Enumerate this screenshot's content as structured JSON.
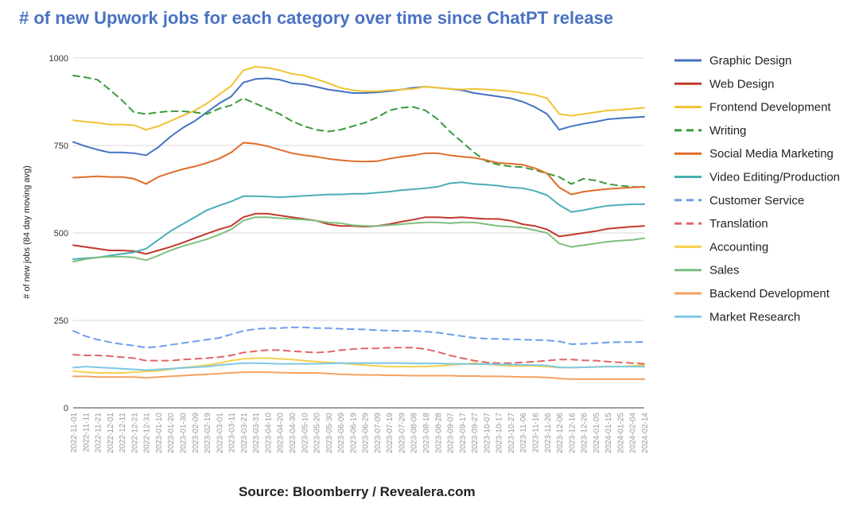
{
  "chart_data": {
    "type": "line",
    "title": "# of new Upwork jobs for each category over time since ChatPT release",
    "source": "Source: Bloomberry / Revealera.com",
    "ylabel": "# of new jobs (84 day moving avg)",
    "xlabel": "",
    "ylim": [
      0,
      1000
    ],
    "yticks": [
      0,
      250,
      500,
      750,
      1000
    ],
    "grid": true,
    "legend_position": "right",
    "x": [
      "2022-11-01",
      "2022-11-11",
      "2022-11-21",
      "2022-12-01",
      "2022-12-11",
      "2022-12-21",
      "2022-12-31",
      "2023-01-10",
      "2023-01-20",
      "2023-01-30",
      "2023-02-09",
      "2023-02-19",
      "2023-03-01",
      "2023-03-11",
      "2023-03-21",
      "2023-03-31",
      "2023-04-10",
      "2023-04-20",
      "2023-04-30",
      "2023-05-10",
      "2023-05-20",
      "2023-05-30",
      "2023-06-09",
      "2023-06-19",
      "2023-06-29",
      "2023-07-09",
      "2023-07-19",
      "2023-07-29",
      "2023-08-08",
      "2023-08-18",
      "2023-08-28",
      "2023-09-07",
      "2023-09-17",
      "2023-09-27",
      "2023-10-07",
      "2023-10-17",
      "2023-10-27",
      "2023-11-06",
      "2023-11-16",
      "2023-11-26",
      "2023-12-06",
      "2023-12-16",
      "2023-12-26",
      "2024-01-05",
      "2024-01-15",
      "2024-01-25",
      "2024-02-04",
      "2024-02-14"
    ],
    "series": [
      {
        "name": "Graphic Design",
        "color": "#4472c4",
        "dash": "solid",
        "values": [
          760,
          748,
          738,
          730,
          730,
          728,
          722,
          745,
          775,
          800,
          820,
          845,
          870,
          890,
          930,
          940,
          942,
          938,
          928,
          925,
          918,
          910,
          905,
          900,
          900,
          902,
          905,
          910,
          915,
          918,
          915,
          912,
          908,
          900,
          895,
          890,
          885,
          875,
          860,
          840,
          795,
          805,
          812,
          818,
          825,
          828,
          830,
          832
        ]
      },
      {
        "name": "Web Design",
        "color": "#c0392b",
        "dash": "solid",
        "values": [
          465,
          460,
          455,
          450,
          450,
          448,
          440,
          450,
          460,
          472,
          485,
          498,
          510,
          520,
          545,
          555,
          555,
          550,
          545,
          540,
          535,
          525,
          520,
          520,
          518,
          520,
          525,
          532,
          538,
          545,
          545,
          543,
          545,
          542,
          540,
          540,
          535,
          525,
          520,
          510,
          490,
          495,
          500,
          505,
          512,
          515,
          518,
          520
        ]
      },
      {
        "name": "Frontend Development",
        "color": "#f1c232",
        "dash": "solid",
        "values": [
          822,
          818,
          815,
          810,
          810,
          808,
          795,
          805,
          820,
          835,
          850,
          870,
          895,
          920,
          965,
          975,
          972,
          965,
          955,
          950,
          940,
          928,
          915,
          908,
          905,
          905,
          908,
          910,
          912,
          918,
          915,
          912,
          910,
          912,
          910,
          908,
          905,
          900,
          895,
          885,
          840,
          835,
          840,
          845,
          850,
          852,
          855,
          858
        ]
      },
      {
        "name": "Writing",
        "color": "#3a9a3a",
        "dash": "dashed",
        "values": [
          950,
          945,
          938,
          910,
          880,
          845,
          840,
          845,
          848,
          848,
          845,
          840,
          855,
          865,
          885,
          870,
          855,
          840,
          820,
          805,
          795,
          790,
          795,
          805,
          815,
          830,
          850,
          858,
          860,
          850,
          825,
          790,
          760,
          730,
          705,
          695,
          690,
          688,
          680,
          670,
          660,
          640,
          655,
          650,
          640,
          635,
          632,
          630
        ]
      },
      {
        "name": "Social Media Marketing",
        "color": "#e06c2a",
        "dash": "solid",
        "values": [
          658,
          660,
          662,
          660,
          660,
          655,
          640,
          660,
          672,
          682,
          690,
          700,
          712,
          730,
          758,
          755,
          748,
          738,
          728,
          722,
          718,
          712,
          708,
          705,
          704,
          705,
          712,
          718,
          722,
          728,
          728,
          722,
          718,
          715,
          708,
          700,
          698,
          695,
          685,
          670,
          630,
          610,
          618,
          622,
          626,
          628,
          630,
          632
        ]
      },
      {
        "name": "Video Editing/Production",
        "color": "#4cadb6",
        "dash": "solid",
        "values": [
          425,
          428,
          430,
          435,
          440,
          445,
          455,
          480,
          505,
          525,
          545,
          565,
          578,
          590,
          605,
          605,
          604,
          602,
          604,
          606,
          608,
          610,
          610,
          612,
          612,
          615,
          618,
          622,
          625,
          628,
          632,
          642,
          645,
          640,
          638,
          635,
          630,
          628,
          620,
          608,
          580,
          560,
          565,
          572,
          578,
          580,
          582,
          582
        ]
      },
      {
        "name": "Customer Service",
        "color": "#6d9eeb",
        "dash": "dashed",
        "values": [
          220,
          205,
          195,
          188,
          182,
          178,
          172,
          175,
          180,
          185,
          190,
          195,
          200,
          210,
          220,
          225,
          228,
          228,
          230,
          230,
          228,
          228,
          226,
          225,
          224,
          222,
          221,
          220,
          220,
          218,
          215,
          210,
          205,
          200,
          198,
          197,
          196,
          195,
          194,
          193,
          190,
          182,
          183,
          185,
          187,
          188,
          188,
          188
        ]
      },
      {
        "name": "Translation",
        "color": "#e06666",
        "dash": "dashed",
        "values": [
          152,
          150,
          150,
          148,
          145,
          142,
          135,
          135,
          135,
          138,
          140,
          142,
          145,
          150,
          158,
          162,
          165,
          165,
          162,
          160,
          158,
          160,
          165,
          168,
          170,
          170,
          172,
          172,
          172,
          168,
          160,
          150,
          142,
          135,
          130,
          128,
          128,
          130,
          132,
          135,
          138,
          138,
          136,
          135,
          132,
          130,
          128,
          126
        ]
      },
      {
        "name": "Accounting",
        "color": "#f6d04d",
        "dash": "solid",
        "values": [
          105,
          102,
          100,
          100,
          100,
          102,
          104,
          106,
          110,
          115,
          118,
          122,
          128,
          135,
          140,
          142,
          142,
          140,
          138,
          135,
          132,
          130,
          128,
          125,
          122,
          120,
          118,
          118,
          118,
          118,
          120,
          122,
          125,
          128,
          125,
          122,
          120,
          120,
          120,
          118,
          115,
          115,
          116,
          117,
          118,
          118,
          120,
          122
        ]
      },
      {
        "name": "Sales",
        "color": "#7fbf7f",
        "dash": "solid",
        "values": [
          418,
          425,
          430,
          432,
          432,
          430,
          422,
          435,
          450,
          462,
          472,
          482,
          495,
          510,
          535,
          545,
          545,
          542,
          540,
          538,
          535,
          530,
          528,
          522,
          520,
          520,
          522,
          525,
          528,
          530,
          530,
          528,
          530,
          530,
          525,
          520,
          518,
          515,
          508,
          500,
          470,
          460,
          465,
          470,
          475,
          478,
          480,
          485
        ]
      },
      {
        "name": "Backend Development",
        "color": "#f4a261",
        "dash": "solid",
        "values": [
          90,
          90,
          88,
          88,
          88,
          88,
          86,
          88,
          90,
          92,
          94,
          96,
          98,
          100,
          102,
          102,
          102,
          101,
          100,
          100,
          100,
          98,
          96,
          95,
          94,
          94,
          93,
          93,
          92,
          92,
          92,
          92,
          91,
          91,
          90,
          90,
          89,
          88,
          88,
          87,
          84,
          82,
          82,
          82,
          82,
          82,
          82,
          82
        ]
      },
      {
        "name": "Market Research",
        "color": "#7ec8e3",
        "dash": "solid",
        "values": [
          115,
          118,
          116,
          114,
          112,
          110,
          108,
          110,
          112,
          114,
          116,
          118,
          122,
          125,
          128,
          128,
          127,
          126,
          126,
          126,
          126,
          127,
          128,
          128,
          128,
          128,
          128,
          128,
          127,
          127,
          127,
          126,
          126,
          125,
          125,
          124,
          124,
          123,
          122,
          121,
          116,
          115,
          116,
          117,
          118,
          118,
          118,
          118
        ]
      }
    ]
  }
}
